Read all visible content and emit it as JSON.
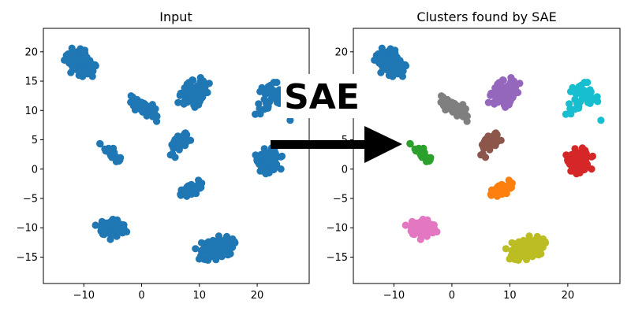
{
  "chart_data": [
    {
      "type": "scatter",
      "title": "Input",
      "xlabel": "",
      "ylabel": "",
      "xlim": [
        -17,
        29
      ],
      "ylim": [
        -19.5,
        24
      ],
      "xticks": [
        -10,
        0,
        10,
        20
      ],
      "yticks": [
        -15,
        -10,
        -5,
        0,
        5,
        10,
        15,
        20
      ],
      "color_mode": "single",
      "color": "#1f77b4",
      "grid": false
    },
    {
      "type": "scatter",
      "title": "Clusters found by SAE",
      "xlabel": "",
      "ylabel": "",
      "xlim": [
        -17,
        29
      ],
      "ylim": [
        -19.5,
        24
      ],
      "xticks": [
        -10,
        0,
        10,
        20
      ],
      "yticks": [
        -15,
        -10,
        -5,
        0,
        5,
        10,
        15,
        20
      ],
      "color_mode": "by_cluster",
      "grid": false
    }
  ],
  "clusters": [
    {
      "color": "#1f77b4",
      "center": [
        -10.5,
        18
      ],
      "spread": [
        2.5,
        1.6
      ],
      "angle": -38,
      "n": 110
    },
    {
      "color": "#7f7f7f",
      "center": [
        0.5,
        10.5
      ],
      "spread": [
        2.1,
        0.9
      ],
      "angle": -30,
      "n": 90
    },
    {
      "color": "#9467bd",
      "center": [
        9,
        13
      ],
      "spread": [
        2.2,
        1.5
      ],
      "angle": 35,
      "n": 110
    },
    {
      "color": "#17becf",
      "center": [
        22.5,
        12
      ],
      "spread": [
        2.6,
        2.6
      ],
      "angle": 0,
      "n": 40
    },
    {
      "color": "#2ca02c",
      "center": [
        -5,
        2.5
      ],
      "spread": [
        2.5,
        0.6
      ],
      "angle": -40,
      "n": 30
    },
    {
      "color": "#8c564b",
      "center": [
        6.8,
        4.5
      ],
      "spread": [
        1.9,
        0.9
      ],
      "angle": 40,
      "n": 70
    },
    {
      "color": "#d62728",
      "center": [
        22,
        1.5
      ],
      "spread": [
        1.6,
        1.6
      ],
      "angle": 0,
      "n": 100
    },
    {
      "color": "#ff7f0e",
      "center": [
        8.5,
        -3.5
      ],
      "spread": [
        1.7,
        0.8
      ],
      "angle": 25,
      "n": 50
    },
    {
      "color": "#e377c2",
      "center": [
        -5,
        -10
      ],
      "spread": [
        2.1,
        1.4
      ],
      "angle": -5,
      "n": 90
    },
    {
      "color": "#bcbd22",
      "center": [
        13,
        -13.5
      ],
      "spread": [
        2.5,
        1.5
      ],
      "angle": 15,
      "n": 140
    }
  ],
  "overlay": {
    "label": "SAE",
    "arrow_color": "#000000"
  }
}
